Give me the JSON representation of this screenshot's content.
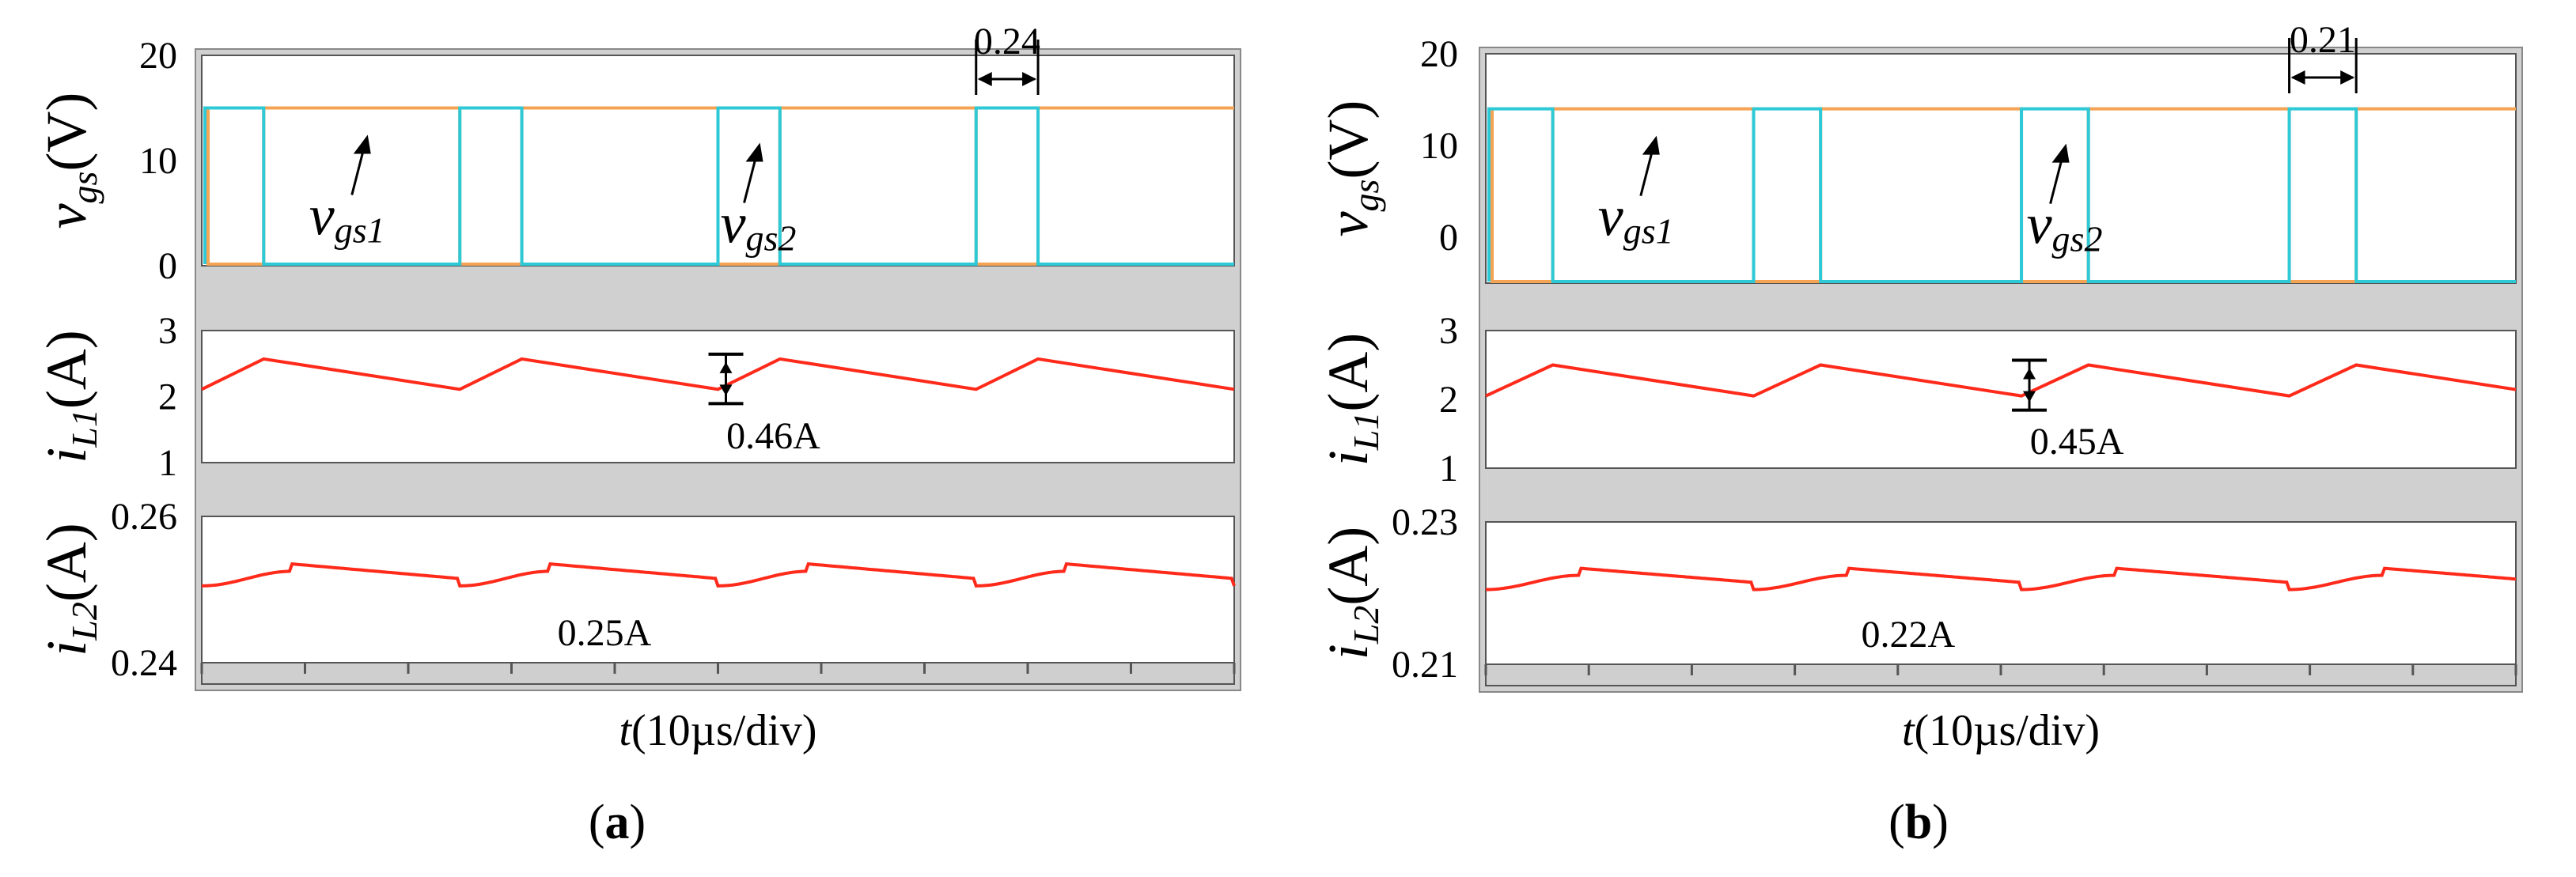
{
  "chart_data": [
    {
      "type": "line",
      "panel_label": "(a)",
      "panel_letter": "a",
      "xlabel": "t(10µs/div)",
      "xlabel_var": "t",
      "xlabel_unit": "(10µs/div)",
      "x_divisions": 10,
      "switching_period_div": 2.5,
      "duty_shift_div": 0.6,
      "subplots": [
        {
          "id": "vgs",
          "ylabel": "vgs(V)",
          "ylabel_main": "v",
          "ylabel_sub": "gs",
          "ylabel_unit": "(V)",
          "ylim": [
            0,
            20
          ],
          "yticks": [
            "20",
            "10",
            "0"
          ],
          "series": [
            {
              "name": "vgs1",
              "color": "#f5a455",
              "low": 0,
              "high": 15
            },
            {
              "name": "vgs2",
              "color": "#2ec9d6",
              "low": 0,
              "high": 15
            }
          ],
          "annotations": {
            "vgs1_main": "v",
            "vgs1_sub": "gs1",
            "vgs2_main": "v",
            "vgs2_sub": "gs2",
            "deadtime": "0.24"
          }
        },
        {
          "id": "iL1",
          "ylabel": "iL1(A)",
          "ylabel_main": "i",
          "ylabel_sub": "L1",
          "ylabel_unit": "(A)",
          "ylim": [
            1,
            3
          ],
          "yticks": [
            "3",
            "2",
            "1"
          ],
          "series": [
            {
              "name": "iL1",
              "color": "#ff2a1a",
              "min": 2.11,
              "max": 2.57
            }
          ],
          "annotations": {
            "ripple": "0.46A"
          }
        },
        {
          "id": "iL2",
          "ylabel": "iL2(A)",
          "ylabel_main": "i",
          "ylabel_sub": "L2",
          "ylabel_unit": "(A)",
          "ylim": [
            0.24,
            0.26
          ],
          "yticks": [
            "0.26",
            "0.24"
          ],
          "series": [
            {
              "name": "iL2",
              "color": "#ff2a1a",
              "min": 0.2505,
              "max": 0.2525
            }
          ],
          "annotations": {
            "mean": "0.25A"
          }
        }
      ]
    },
    {
      "type": "line",
      "panel_label": "(b)",
      "panel_letter": "b",
      "xlabel": "t(10µs/div)",
      "xlabel_var": "t",
      "xlabel_unit": "(10µs/div)",
      "x_divisions": 10,
      "switching_period_div": 2.6,
      "duty_shift_div": 0.65,
      "subplots": [
        {
          "id": "vgs",
          "ylabel": "vgs(V)",
          "ylabel_main": "v",
          "ylabel_sub": "gs",
          "ylabel_unit": "(V)",
          "ylim": [
            -5,
            20
          ],
          "yticks": [
            "20",
            "10",
            "0"
          ],
          "series": [
            {
              "name": "vgs1",
              "color": "#f5a455",
              "low": -5,
              "high": 14
            },
            {
              "name": "vgs2",
              "color": "#2ec9d6",
              "low": -5,
              "high": 14
            }
          ],
          "annotations": {
            "vgs1_main": "v",
            "vgs1_sub": "gs1",
            "vgs2_main": "v",
            "vgs2_sub": "gs2",
            "deadtime": "0.21"
          }
        },
        {
          "id": "iL1",
          "ylabel": "iL1(A)",
          "ylabel_main": "i",
          "ylabel_sub": "L1",
          "ylabel_unit": "(A)",
          "ylim": [
            1,
            3
          ],
          "yticks": [
            "3",
            "2",
            "1"
          ],
          "series": [
            {
              "name": "iL1",
              "color": "#ff2a1a",
              "min": 2.05,
              "max": 2.5
            }
          ],
          "annotations": {
            "ripple": "0.45A"
          }
        },
        {
          "id": "iL2",
          "ylabel": "iL2(A)",
          "ylabel_main": "i",
          "ylabel_sub": "L2",
          "ylabel_unit": "(A)",
          "ylim": [
            0.21,
            0.23
          ],
          "yticks": [
            "0.23",
            "0.21"
          ],
          "series": [
            {
              "name": "iL2",
              "color": "#ff2a1a",
              "min": 0.2205,
              "max": 0.2225
            }
          ],
          "annotations": {
            "mean": "0.22A"
          }
        }
      ]
    }
  ]
}
